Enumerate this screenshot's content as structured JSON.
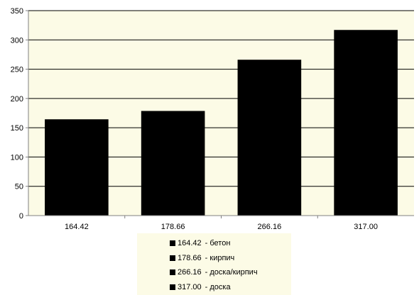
{
  "chart_data": {
    "type": "bar",
    "categories": [
      "164.42",
      "178.66",
      "266.16",
      "317.00"
    ],
    "series": [
      {
        "values": [
          164.42,
          178.66,
          266.16,
          317.0
        ]
      }
    ],
    "title": "",
    "xlabel": "",
    "ylabel": "",
    "ylim": [
      0,
      350
    ],
    "yticks": [
      "0",
      "50",
      "100",
      "150",
      "200",
      "250",
      "300",
      "350"
    ],
    "grid": true,
    "legend": {
      "placement": "bottom",
      "items": [
        {
          "value": "164.42",
          "label": "- бетон"
        },
        {
          "value": "178.66",
          "label": "- кирпич"
        },
        {
          "value": "266.16",
          "label": "- доска/кирпич"
        },
        {
          "value": "317.00",
          "label": "- доска"
        }
      ]
    },
    "colors": {
      "plot_background": "#fcfbe6",
      "bar": "#000000",
      "gridline": "#000000",
      "axis": "#808080"
    }
  }
}
